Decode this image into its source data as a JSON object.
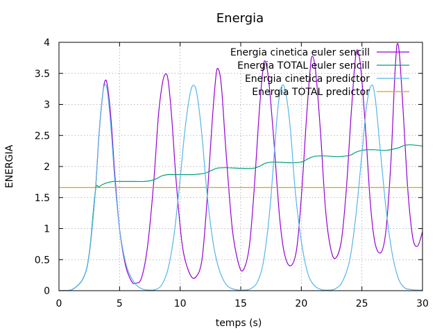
{
  "chart_data": {
    "type": "line",
    "title": "Energia",
    "xlabel": "temps (s)",
    "ylabel": "ENERGIA",
    "xlim": [
      0,
      30
    ],
    "ylim": [
      0,
      4
    ],
    "xticks": [
      0,
      5,
      10,
      15,
      20,
      25,
      30
    ],
    "yticks": [
      0,
      0.5,
      1,
      1.5,
      2,
      2.5,
      3,
      3.5,
      4
    ],
    "xtick_labels": [
      "0",
      "5",
      "10",
      "15",
      "20",
      "25",
      "30"
    ],
    "ytick_labels": [
      "0",
      "0.5",
      "1",
      "1.5",
      "2",
      "2.5",
      "3",
      "3.5",
      "4"
    ],
    "grid": true,
    "legend_position": "top-right",
    "series": [
      {
        "name": "Energia cinetica euler sencill",
        "color": "#9400d3",
        "x": [
          0,
          1,
          2,
          2.5,
          3,
          3.3,
          3.6,
          3.8,
          4.0,
          4.3,
          4.6,
          5.0,
          5.5,
          6.0,
          6.3,
          6.8,
          7.3,
          7.8,
          8.2,
          8.5,
          8.75,
          9.0,
          9.3,
          9.7,
          10.2,
          10.8,
          11.3,
          11.8,
          12.2,
          12.6,
          12.9,
          13.1,
          13.4,
          13.8,
          14.3,
          14.8,
          15.2,
          15.7,
          16.1,
          16.5,
          16.8,
          17.0,
          17.3,
          17.7,
          18.2,
          18.6,
          19.1,
          19.6,
          20.0,
          20.4,
          20.7,
          20.9,
          21.2,
          21.6,
          22.0,
          22.4,
          22.8,
          23.3,
          23.7,
          24.1,
          24.4,
          24.6,
          24.9,
          25.3,
          25.7,
          26.1,
          26.6,
          27.0,
          27.4,
          27.7,
          27.9,
          28.1,
          28.4,
          28.8,
          29.2,
          29.6,
          30
        ],
        "y": [
          0,
          0.01,
          0.2,
          0.6,
          1.6,
          2.5,
          3.15,
          3.38,
          3.3,
          2.75,
          1.9,
          1.0,
          0.4,
          0.15,
          0.12,
          0.2,
          0.7,
          1.7,
          2.8,
          3.3,
          3.48,
          3.4,
          2.8,
          1.7,
          0.7,
          0.27,
          0.22,
          0.5,
          1.4,
          2.6,
          3.35,
          3.58,
          3.3,
          2.2,
          1.0,
          0.45,
          0.33,
          0.7,
          1.6,
          2.8,
          3.5,
          3.7,
          3.4,
          2.5,
          1.2,
          0.6,
          0.4,
          0.65,
          1.5,
          2.7,
          3.5,
          3.78,
          3.5,
          2.5,
          1.3,
          0.7,
          0.52,
          0.8,
          1.6,
          2.8,
          3.6,
          3.88,
          3.6,
          2.6,
          1.4,
          0.75,
          0.62,
          1.0,
          2.1,
          3.4,
          3.97,
          3.8,
          2.9,
          1.6,
          0.85,
          0.72,
          0.95
        ]
      },
      {
        "name": "Energia TOTAL euler sencill",
        "color": "#009e73",
        "x": [
          0,
          1,
          2,
          2.5,
          3,
          3.3,
          3.6,
          4.0,
          4.5,
          5.0,
          6.0,
          7.0,
          7.5,
          8.0,
          8.5,
          9.0,
          9.5,
          10.0,
          11.0,
          12.0,
          12.5,
          13.0,
          13.5,
          14.0,
          15.0,
          16.0,
          16.5,
          17.0,
          17.5,
          18.0,
          19.0,
          20.0,
          20.5,
          21.0,
          21.5,
          22.0,
          23.0,
          24.0,
          24.5,
          25.0,
          25.5,
          26.0,
          27.0,
          28.0,
          28.5,
          29.0,
          30.0
        ],
        "y": [
          0,
          0.01,
          0.2,
          0.6,
          1.6,
          1.67,
          1.71,
          1.74,
          1.76,
          1.76,
          1.76,
          1.76,
          1.77,
          1.8,
          1.85,
          1.87,
          1.87,
          1.87,
          1.87,
          1.89,
          1.93,
          1.97,
          1.98,
          1.98,
          1.97,
          1.97,
          2.0,
          2.05,
          2.07,
          2.07,
          2.06,
          2.07,
          2.12,
          2.16,
          2.17,
          2.17,
          2.16,
          2.18,
          2.23,
          2.26,
          2.27,
          2.27,
          2.26,
          2.3,
          2.34,
          2.35,
          2.33
        ]
      },
      {
        "name": "Energia cinetica predictor",
        "color": "#56b4e9",
        "x": [
          0,
          1,
          2,
          2.5,
          3,
          3.3,
          3.6,
          3.8,
          4.0,
          4.3,
          4.6,
          5.0,
          5.5,
          6.0,
          6.5,
          7.0,
          7.5,
          8.0,
          8.5,
          9.0,
          9.5,
          10.0,
          10.4,
          10.8,
          11.1,
          11.4,
          11.8,
          12.2,
          12.7,
          13.2,
          13.8,
          14.5,
          15.2,
          15.8,
          16.4,
          16.9,
          17.4,
          17.8,
          18.1,
          18.4,
          18.7,
          19.1,
          19.5,
          20.0,
          20.5,
          21.0,
          21.6,
          22.2,
          22.8,
          23.4,
          24.0,
          24.5,
          25.0,
          25.4,
          25.8,
          26.1,
          26.5,
          27.0,
          27.5,
          28.0,
          28.5,
          29.0,
          29.5,
          30
        ],
        "y": [
          0,
          0.01,
          0.2,
          0.6,
          1.6,
          2.5,
          3.15,
          3.32,
          3.2,
          2.6,
          1.8,
          1.0,
          0.45,
          0.2,
          0.07,
          0.02,
          0.01,
          0.02,
          0.1,
          0.35,
          0.9,
          1.8,
          2.6,
          3.15,
          3.31,
          3.15,
          2.5,
          1.6,
          0.8,
          0.35,
          0.1,
          0.02,
          0.01,
          0.03,
          0.15,
          0.5,
          1.3,
          2.3,
          3.0,
          3.3,
          3.2,
          2.6,
          1.6,
          0.8,
          0.3,
          0.1,
          0.02,
          0.01,
          0.03,
          0.15,
          0.5,
          1.2,
          2.2,
          3.0,
          3.31,
          3.1,
          2.3,
          1.3,
          0.6,
          0.2,
          0.05,
          0.02,
          0.01,
          0.01
        ]
      },
      {
        "name": "Energia TOTAL predictor",
        "color": "#e69f00",
        "x": [
          0,
          30
        ],
        "y": [
          1.66,
          1.66
        ]
      }
    ]
  }
}
